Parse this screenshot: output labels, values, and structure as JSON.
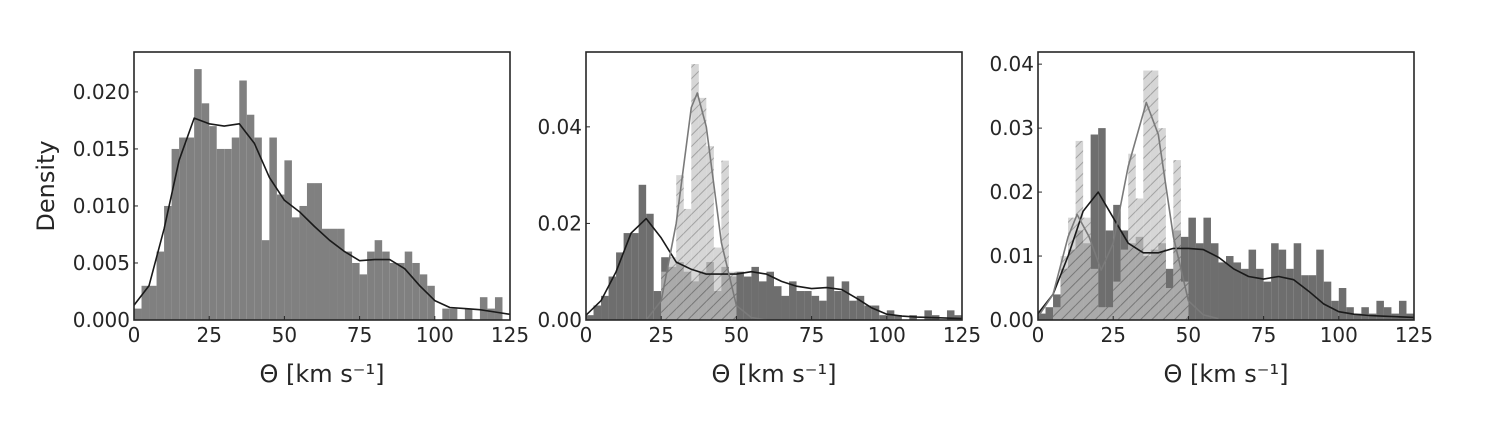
{
  "chart_data": [
    {
      "type": "histogram",
      "xlabel": "Θ [km s⁻¹]",
      "ylabel": "Density",
      "xlim": [
        0,
        125
      ],
      "ylim": [
        0,
        0.0235
      ],
      "xticks": [
        0,
        25,
        50,
        75,
        100,
        125
      ],
      "yticks": [
        {
          "value": 0,
          "label": "0.000"
        },
        {
          "value": 0.005,
          "label": "0.005"
        },
        {
          "value": 0.01,
          "label": "0.010"
        },
        {
          "value": 0.015,
          "label": "0.015"
        },
        {
          "value": 0.02,
          "label": "0.020"
        }
      ],
      "bins": [
        0,
        2.5,
        5,
        7.5,
        10,
        12.5,
        15,
        17.5,
        20,
        22.5,
        25,
        27.5,
        30,
        32.5,
        35,
        37.5,
        40,
        42.5,
        45,
        47.5,
        50,
        52.5,
        55,
        57.5,
        60,
        62.5,
        65,
        67.5,
        70,
        72.5,
        75,
        77.5,
        80,
        82.5,
        85,
        87.5,
        90,
        92.5,
        95,
        97.5,
        100,
        102.5,
        105,
        107.5,
        110,
        112.5,
        115,
        117.5,
        120,
        122.5,
        125
      ],
      "series": [
        {
          "color": "#808080",
          "opacity": 1,
          "hatch": false,
          "values": [
            0.001,
            0.003,
            0.003,
            0.006,
            0.01,
            0.015,
            0.016,
            0.016,
            0.022,
            0.019,
            0.017,
            0.015,
            0.015,
            0.016,
            0.021,
            0.018,
            0.016,
            0.007,
            0.016,
            0.011,
            0.014,
            0.009,
            0.01,
            0.012,
            0.012,
            0.008,
            0.008,
            0.008,
            0.006,
            0.005,
            0.004,
            0.006,
            0.007,
            0.006,
            0.005,
            0.005,
            0.006,
            0.005,
            0.004,
            0.003,
            0,
            0.001,
            0.001,
            0,
            0.001,
            0,
            0.002,
            0.001,
            0.002,
            0
          ]
        }
      ],
      "kde": [
        {
          "color": "#1a1a1a",
          "x": [
            0,
            5,
            10,
            15,
            20,
            25,
            30,
            35,
            40,
            45,
            50,
            55,
            60,
            65,
            70,
            75,
            80,
            85,
            90,
            95,
            100,
            105,
            110,
            115,
            120,
            125
          ],
          "y": [
            0.0013,
            0.003,
            0.008,
            0.014,
            0.0177,
            0.0172,
            0.017,
            0.0172,
            0.0155,
            0.0125,
            0.0105,
            0.0095,
            0.0082,
            0.007,
            0.006,
            0.0052,
            0.0053,
            0.0053,
            0.0045,
            0.003,
            0.0017,
            0.0011,
            0.001,
            0.0009,
            0.0007,
            0.0005
          ]
        }
      ]
    },
    {
      "type": "histogram",
      "xlabel": "Θ [km s⁻¹]",
      "xlim": [
        0,
        125
      ],
      "ylim": [
        0,
        0.0555
      ],
      "xticks": [
        0,
        25,
        50,
        75,
        100,
        125
      ],
      "yticks": [
        {
          "value": 0,
          "label": "0.00"
        },
        {
          "value": 0.02,
          "label": "0.02"
        },
        {
          "value": 0.04,
          "label": "0.04"
        }
      ],
      "bins": [
        0,
        2.5,
        5,
        7.5,
        10,
        12.5,
        15,
        17.5,
        20,
        22.5,
        25,
        27.5,
        30,
        32.5,
        35,
        37.5,
        40,
        42.5,
        45,
        47.5,
        50,
        52.5,
        55,
        57.5,
        60,
        62.5,
        65,
        67.5,
        70,
        72.5,
        75,
        77.5,
        80,
        82.5,
        85,
        87.5,
        90,
        92.5,
        95,
        97.5,
        100,
        102.5,
        105,
        107.5,
        110,
        112.5,
        115,
        117.5,
        120,
        122.5,
        125
      ],
      "series": [
        {
          "color": "#6e6e6e",
          "opacity": 1,
          "hatch": false,
          "values": [
            0.001,
            0.003,
            0.005,
            0.009,
            0.014,
            0.018,
            0.018,
            0.028,
            0.022,
            0.006,
            0.013,
            0.011,
            0.012,
            0.01,
            0.008,
            0.01,
            0.012,
            0.006,
            0.011,
            0.009,
            0.01,
            0.009,
            0.011,
            0.008,
            0.01,
            0.007,
            0.005,
            0.008,
            0.006,
            0.006,
            0.005,
            0.004,
            0.009,
            0.006,
            0.008,
            0.004,
            0.005,
            0.003,
            0.003,
            0.001,
            0.002,
            0.001,
            0,
            0.001,
            0,
            0.002,
            0.001,
            0,
            0.002,
            0.001
          ]
        },
        {
          "color": "#c4c4c4",
          "opacity": 0.7,
          "hatch": true,
          "values": [
            0,
            0,
            0,
            0,
            0,
            0,
            0,
            0,
            0,
            0,
            0.01,
            0.013,
            0.03,
            0.023,
            0.053,
            0.046,
            0.036,
            0.015,
            0.033,
            0.01,
            0,
            0,
            0,
            0,
            0,
            0,
            0,
            0,
            0,
            0,
            0,
            0,
            0,
            0,
            0,
            0,
            0,
            0,
            0,
            0,
            0,
            0,
            0,
            0,
            0,
            0,
            0,
            0,
            0,
            0
          ]
        }
      ],
      "kde": [
        {
          "color": "#1a1a1a",
          "x": [
            0,
            5,
            10,
            15,
            20,
            25,
            30,
            35,
            40,
            45,
            50,
            55,
            60,
            65,
            70,
            75,
            80,
            85,
            90,
            95,
            100,
            105,
            110,
            115,
            120,
            125
          ],
          "y": [
            0.001,
            0.004,
            0.01,
            0.018,
            0.021,
            0.017,
            0.012,
            0.0105,
            0.0095,
            0.0095,
            0.0095,
            0.01,
            0.0095,
            0.008,
            0.007,
            0.0065,
            0.0067,
            0.0063,
            0.0045,
            0.0025,
            0.0012,
            0.0008,
            0.0006,
            0.0005,
            0.0004,
            0.0003
          ]
        },
        {
          "color": "#7a7a7a",
          "x": [
            20,
            25,
            30,
            35,
            37,
            40,
            45,
            50,
            55,
            60
          ],
          "y": [
            0,
            0.004,
            0.02,
            0.044,
            0.047,
            0.04,
            0.016,
            0.003,
            0.0005,
            0
          ]
        }
      ]
    },
    {
      "type": "histogram",
      "xlabel": "Θ [km s⁻¹]",
      "xlim": [
        0,
        125
      ],
      "ylim": [
        0,
        0.0419
      ],
      "xticks": [
        0,
        25,
        50,
        75,
        100,
        125
      ],
      "yticks": [
        {
          "value": 0,
          "label": "0.00"
        },
        {
          "value": 0.01,
          "label": "0.01"
        },
        {
          "value": 0.02,
          "label": "0.02"
        },
        {
          "value": 0.03,
          "label": "0.03"
        },
        {
          "value": 0.04,
          "label": "0.04"
        }
      ],
      "bins": [
        0,
        2.5,
        5,
        7.5,
        10,
        12.5,
        15,
        17.5,
        20,
        22.5,
        25,
        27.5,
        30,
        32.5,
        35,
        37.5,
        40,
        42.5,
        45,
        47.5,
        50,
        52.5,
        55,
        57.5,
        60,
        62.5,
        65,
        67.5,
        70,
        72.5,
        75,
        77.5,
        80,
        82.5,
        85,
        87.5,
        90,
        92.5,
        95,
        97.5,
        100,
        102.5,
        105,
        107.5,
        110,
        112.5,
        115,
        117.5,
        120,
        122.5,
        125
      ],
      "series": [
        {
          "color": "#6e6e6e",
          "opacity": 1,
          "hatch": false,
          "values": [
            0.001,
            0.002,
            0.004,
            0.008,
            0.011,
            0.014,
            0.012,
            0.029,
            0.03,
            0.014,
            0.018,
            0.014,
            0.012,
            0.013,
            0.01,
            0.011,
            0.012,
            0.008,
            0.014,
            0.013,
            0.016,
            0.012,
            0.016,
            0.012,
            0.009,
            0.01,
            0.009,
            0.008,
            0.011,
            0.008,
            0.006,
            0.012,
            0.011,
            0.008,
            0.012,
            0.007,
            0.007,
            0.011,
            0.006,
            0.003,
            0.005,
            0.002,
            0.001,
            0.002,
            0.001,
            0.003,
            0.002,
            0.001,
            0.003,
            0.001
          ]
        },
        {
          "color": "#c4c4c4",
          "opacity": 0.7,
          "hatch": true,
          "values": [
            0,
            0,
            0.002,
            0.01,
            0.016,
            0.028,
            0.016,
            0.008,
            0.002,
            0.002,
            0.006,
            0.011,
            0.026,
            0.019,
            0.039,
            0.039,
            0.03,
            0.005,
            0.025,
            0.006,
            0,
            0,
            0,
            0,
            0,
            0,
            0,
            0,
            0,
            0,
            0,
            0,
            0,
            0,
            0,
            0,
            0,
            0,
            0,
            0,
            0,
            0,
            0,
            0,
            0,
            0,
            0,
            0,
            0,
            0
          ]
        }
      ],
      "kde": [
        {
          "color": "#1a1a1a",
          "x": [
            0,
            5,
            10,
            15,
            20,
            25,
            30,
            35,
            40,
            45,
            50,
            55,
            60,
            65,
            70,
            75,
            80,
            85,
            90,
            95,
            100,
            105,
            110,
            115,
            120,
            125
          ],
          "y": [
            0.001,
            0.004,
            0.01,
            0.017,
            0.02,
            0.016,
            0.012,
            0.0105,
            0.0105,
            0.0112,
            0.0112,
            0.011,
            0.0098,
            0.008,
            0.0068,
            0.0064,
            0.0068,
            0.0063,
            0.0045,
            0.0025,
            0.0013,
            0.0009,
            0.0007,
            0.0006,
            0.0005,
            0.0004
          ]
        },
        {
          "color": "#7a7a7a",
          "x": [
            0,
            5,
            10,
            13,
            17,
            21,
            25,
            30,
            36,
            40,
            45,
            50,
            55,
            60
          ],
          "y": [
            0.0005,
            0.004,
            0.013,
            0.0165,
            0.013,
            0.0078,
            0.012,
            0.024,
            0.034,
            0.029,
            0.013,
            0.003,
            0.0008,
            0.0002
          ]
        }
      ]
    }
  ]
}
